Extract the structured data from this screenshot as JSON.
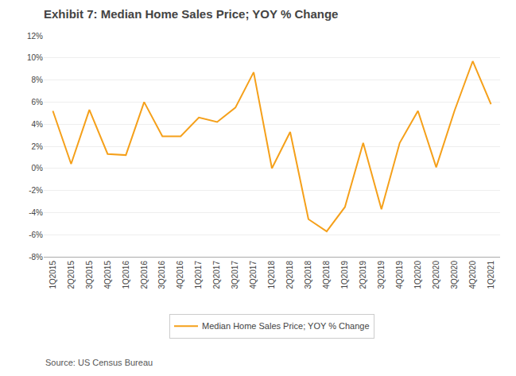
{
  "chart_data": {
    "type": "line",
    "title": "Exhibit 7: Median Home Sales Price; YOY % Change",
    "annotations": [
      "Source: US Census Bureau"
    ],
    "categories": [
      "1Q2015",
      "2Q2015",
      "3Q2015",
      "4Q2015",
      "1Q2016",
      "2Q2016",
      "3Q2016",
      "4Q2016",
      "1Q2017",
      "2Q2017",
      "3Q2017",
      "4Q2017",
      "1Q2018",
      "2Q2018",
      "3Q2018",
      "4Q2018",
      "1Q2019",
      "2Q2019",
      "3Q2019",
      "4Q2019",
      "1Q2020",
      "2Q2020",
      "3Q2020",
      "4Q2020",
      "1Q2021"
    ],
    "series": [
      {
        "name": "Median Home Sales Price; YOY % Change",
        "color": "#F5A01A",
        "values": [
          5.2,
          0.4,
          5.3,
          1.3,
          1.2,
          6.0,
          2.9,
          2.9,
          4.6,
          4.2,
          5.5,
          8.7,
          0.0,
          3.3,
          -4.6,
          -5.7,
          -3.5,
          2.3,
          -3.7,
          2.3,
          5.2,
          0.1,
          5.2,
          9.7,
          5.8
        ]
      }
    ],
    "ylim": [
      -8,
      12
    ],
    "yticks": [
      {
        "value": -8,
        "label": "-8%"
      },
      {
        "value": -6,
        "label": "-6%"
      },
      {
        "value": -4,
        "label": "-4%"
      },
      {
        "value": -2,
        "label": "-2%"
      },
      {
        "value": 0,
        "label": "0%"
      },
      {
        "value": 2,
        "label": "2%"
      },
      {
        "value": 4,
        "label": "4%"
      },
      {
        "value": 6,
        "label": "6%"
      },
      {
        "value": 8,
        "label": "8%"
      },
      {
        "value": 10,
        "label": "10%"
      },
      {
        "value": 12,
        "label": "12%"
      }
    ],
    "grid": true,
    "legend": "bottom"
  }
}
